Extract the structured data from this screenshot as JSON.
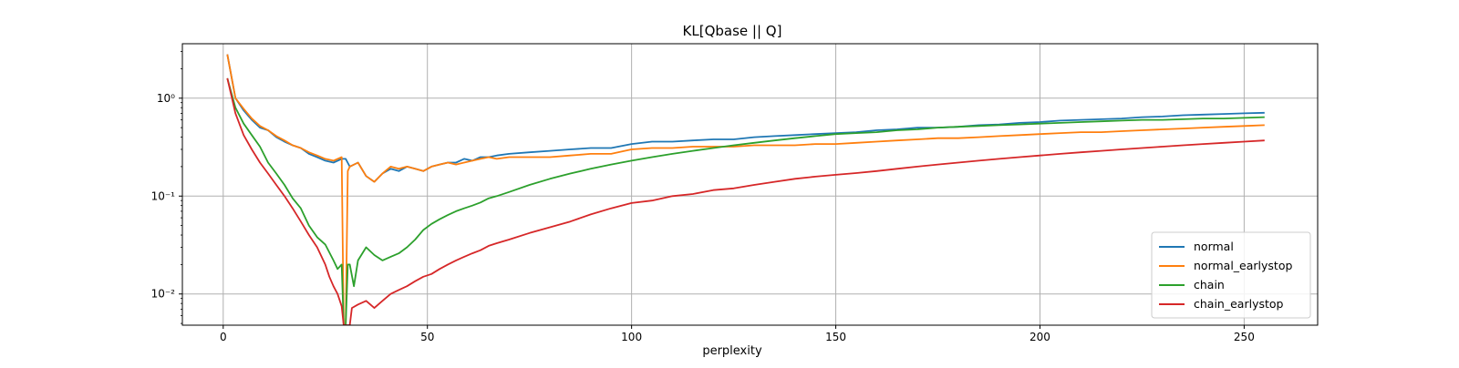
{
  "chart_data": {
    "type": "line",
    "title": "KL[Qbase || Q]",
    "xlabel": "perplexity",
    "ylabel": "",
    "xlim": [
      -10,
      268
    ],
    "ylim": [
      0.0048,
      3.6
    ],
    "yscale": "log",
    "grid": true,
    "legend_position": "lower right",
    "x_ticks": [
      0,
      50,
      100,
      150,
      200,
      250
    ],
    "x_tick_labels": [
      "0",
      "50",
      "100",
      "150",
      "200",
      "250"
    ],
    "y_ticks": [
      0.01,
      0.1,
      1
    ],
    "y_tick_labels": [
      "10⁻²",
      "10⁻¹",
      "10⁰"
    ],
    "series": [
      {
        "name": "normal",
        "color": "#1f77b4",
        "points": [
          [
            1,
            2.8
          ],
          [
            3,
            1.0
          ],
          [
            5,
            0.75
          ],
          [
            7,
            0.6
          ],
          [
            9,
            0.5
          ],
          [
            11,
            0.47
          ],
          [
            13,
            0.4
          ],
          [
            15,
            0.36
          ],
          [
            17,
            0.33
          ],
          [
            19,
            0.31
          ],
          [
            21,
            0.27
          ],
          [
            23,
            0.25
          ],
          [
            25,
            0.23
          ],
          [
            27,
            0.22
          ],
          [
            29,
            0.24
          ],
          [
            30,
            0.24
          ],
          [
            31,
            0.2
          ],
          [
            33,
            0.22
          ],
          [
            35,
            0.16
          ],
          [
            37,
            0.14
          ],
          [
            39,
            0.17
          ],
          [
            41,
            0.19
          ],
          [
            43,
            0.18
          ],
          [
            45,
            0.2
          ],
          [
            47,
            0.19
          ],
          [
            49,
            0.18
          ],
          [
            51,
            0.2
          ],
          [
            53,
            0.21
          ],
          [
            55,
            0.22
          ],
          [
            57,
            0.22
          ],
          [
            59,
            0.24
          ],
          [
            61,
            0.23
          ],
          [
            63,
            0.25
          ],
          [
            65,
            0.25
          ],
          [
            67,
            0.26
          ],
          [
            70,
            0.27
          ],
          [
            75,
            0.28
          ],
          [
            80,
            0.29
          ],
          [
            85,
            0.3
          ],
          [
            90,
            0.31
          ],
          [
            95,
            0.31
          ],
          [
            100,
            0.34
          ],
          [
            105,
            0.36
          ],
          [
            110,
            0.36
          ],
          [
            115,
            0.37
          ],
          [
            120,
            0.38
          ],
          [
            125,
            0.38
          ],
          [
            130,
            0.4
          ],
          [
            135,
            0.41
          ],
          [
            140,
            0.42
          ],
          [
            145,
            0.43
          ],
          [
            150,
            0.44
          ],
          [
            155,
            0.45
          ],
          [
            160,
            0.47
          ],
          [
            165,
            0.48
          ],
          [
            170,
            0.5
          ],
          [
            175,
            0.5
          ],
          [
            180,
            0.51
          ],
          [
            185,
            0.53
          ],
          [
            190,
            0.54
          ],
          [
            195,
            0.56
          ],
          [
            200,
            0.57
          ],
          [
            205,
            0.59
          ],
          [
            210,
            0.6
          ],
          [
            215,
            0.61
          ],
          [
            220,
            0.62
          ],
          [
            225,
            0.64
          ],
          [
            230,
            0.65
          ],
          [
            235,
            0.67
          ],
          [
            240,
            0.68
          ],
          [
            245,
            0.69
          ],
          [
            250,
            0.7
          ],
          [
            255,
            0.71
          ]
        ]
      },
      {
        "name": "normal_earlystop",
        "color": "#ff7f0e",
        "points": [
          [
            1,
            2.8
          ],
          [
            3,
            1.0
          ],
          [
            5,
            0.78
          ],
          [
            7,
            0.62
          ],
          [
            9,
            0.52
          ],
          [
            11,
            0.47
          ],
          [
            13,
            0.41
          ],
          [
            15,
            0.37
          ],
          [
            17,
            0.33
          ],
          [
            19,
            0.31
          ],
          [
            21,
            0.28
          ],
          [
            23,
            0.26
          ],
          [
            25,
            0.24
          ],
          [
            27,
            0.23
          ],
          [
            29,
            0.25
          ],
          [
            29.5,
            0.0048
          ],
          [
            30,
            0.0048
          ],
          [
            30.5,
            0.18
          ],
          [
            31,
            0.2
          ],
          [
            33,
            0.22
          ],
          [
            35,
            0.16
          ],
          [
            37,
            0.14
          ],
          [
            39,
            0.17
          ],
          [
            41,
            0.2
          ],
          [
            43,
            0.19
          ],
          [
            45,
            0.2
          ],
          [
            47,
            0.19
          ],
          [
            49,
            0.18
          ],
          [
            51,
            0.2
          ],
          [
            53,
            0.21
          ],
          [
            55,
            0.22
          ],
          [
            57,
            0.21
          ],
          [
            59,
            0.22
          ],
          [
            61,
            0.23
          ],
          [
            63,
            0.24
          ],
          [
            65,
            0.25
          ],
          [
            67,
            0.24
          ],
          [
            70,
            0.25
          ],
          [
            75,
            0.25
          ],
          [
            80,
            0.25
          ],
          [
            85,
            0.26
          ],
          [
            90,
            0.27
          ],
          [
            95,
            0.27
          ],
          [
            100,
            0.3
          ],
          [
            105,
            0.31
          ],
          [
            110,
            0.31
          ],
          [
            115,
            0.32
          ],
          [
            120,
            0.32
          ],
          [
            125,
            0.32
          ],
          [
            130,
            0.33
          ],
          [
            135,
            0.33
          ],
          [
            140,
            0.33
          ],
          [
            145,
            0.34
          ],
          [
            150,
            0.34
          ],
          [
            155,
            0.35
          ],
          [
            160,
            0.36
          ],
          [
            165,
            0.37
          ],
          [
            170,
            0.38
          ],
          [
            175,
            0.39
          ],
          [
            180,
            0.39
          ],
          [
            185,
            0.4
          ],
          [
            190,
            0.41
          ],
          [
            195,
            0.42
          ],
          [
            200,
            0.43
          ],
          [
            205,
            0.44
          ],
          [
            210,
            0.45
          ],
          [
            215,
            0.45
          ],
          [
            220,
            0.46
          ],
          [
            225,
            0.47
          ],
          [
            230,
            0.48
          ],
          [
            235,
            0.49
          ],
          [
            240,
            0.5
          ],
          [
            245,
            0.51
          ],
          [
            250,
            0.52
          ],
          [
            255,
            0.53
          ]
        ]
      },
      {
        "name": "chain",
        "color": "#2ca02c",
        "points": [
          [
            1,
            1.6
          ],
          [
            3,
            0.8
          ],
          [
            5,
            0.55
          ],
          [
            7,
            0.42
          ],
          [
            9,
            0.32
          ],
          [
            11,
            0.22
          ],
          [
            13,
            0.17
          ],
          [
            15,
            0.13
          ],
          [
            17,
            0.095
          ],
          [
            19,
            0.075
          ],
          [
            21,
            0.05
          ],
          [
            23,
            0.038
          ],
          [
            25,
            0.032
          ],
          [
            27,
            0.022
          ],
          [
            28,
            0.018
          ],
          [
            29,
            0.02
          ],
          [
            29.5,
            0.0048
          ],
          [
            30,
            0.0048
          ],
          [
            30.5,
            0.02
          ],
          [
            31,
            0.02
          ],
          [
            32,
            0.012
          ],
          [
            33,
            0.022
          ],
          [
            35,
            0.03
          ],
          [
            37,
            0.025
          ],
          [
            39,
            0.022
          ],
          [
            41,
            0.024
          ],
          [
            43,
            0.026
          ],
          [
            45,
            0.03
          ],
          [
            47,
            0.036
          ],
          [
            49,
            0.045
          ],
          [
            51,
            0.052
          ],
          [
            53,
            0.058
          ],
          [
            55,
            0.064
          ],
          [
            57,
            0.07
          ],
          [
            59,
            0.075
          ],
          [
            61,
            0.08
          ],
          [
            63,
            0.086
          ],
          [
            65,
            0.095
          ],
          [
            67,
            0.1
          ],
          [
            70,
            0.11
          ],
          [
            75,
            0.13
          ],
          [
            80,
            0.15
          ],
          [
            85,
            0.17
          ],
          [
            90,
            0.19
          ],
          [
            95,
            0.21
          ],
          [
            100,
            0.23
          ],
          [
            105,
            0.25
          ],
          [
            110,
            0.27
          ],
          [
            115,
            0.29
          ],
          [
            120,
            0.31
          ],
          [
            125,
            0.33
          ],
          [
            130,
            0.35
          ],
          [
            135,
            0.37
          ],
          [
            140,
            0.39
          ],
          [
            145,
            0.41
          ],
          [
            150,
            0.43
          ],
          [
            155,
            0.44
          ],
          [
            160,
            0.45
          ],
          [
            165,
            0.47
          ],
          [
            170,
            0.48
          ],
          [
            175,
            0.5
          ],
          [
            180,
            0.51
          ],
          [
            185,
            0.52
          ],
          [
            190,
            0.53
          ],
          [
            195,
            0.54
          ],
          [
            200,
            0.55
          ],
          [
            205,
            0.56
          ],
          [
            210,
            0.57
          ],
          [
            215,
            0.58
          ],
          [
            220,
            0.59
          ],
          [
            225,
            0.6
          ],
          [
            230,
            0.6
          ],
          [
            235,
            0.61
          ],
          [
            240,
            0.62
          ],
          [
            245,
            0.62
          ],
          [
            250,
            0.63
          ],
          [
            255,
            0.64
          ]
        ]
      },
      {
        "name": "chain_earlystop",
        "color": "#d62728",
        "points": [
          [
            1,
            1.6
          ],
          [
            3,
            0.7
          ],
          [
            5,
            0.42
          ],
          [
            7,
            0.3
          ],
          [
            9,
            0.22
          ],
          [
            11,
            0.17
          ],
          [
            13,
            0.13
          ],
          [
            15,
            0.1
          ],
          [
            17,
            0.075
          ],
          [
            19,
            0.055
          ],
          [
            21,
            0.04
          ],
          [
            23,
            0.03
          ],
          [
            25,
            0.02
          ],
          [
            26,
            0.015
          ],
          [
            27,
            0.012
          ],
          [
            28,
            0.01
          ],
          [
            29,
            0.0075
          ],
          [
            29.5,
            0.0048
          ],
          [
            30,
            0.0048
          ],
          [
            31,
            0.0048
          ],
          [
            31.5,
            0.0072
          ],
          [
            33,
            0.0078
          ],
          [
            35,
            0.0085
          ],
          [
            37,
            0.0072
          ],
          [
            39,
            0.0085
          ],
          [
            41,
            0.01
          ],
          [
            43,
            0.011
          ],
          [
            45,
            0.012
          ],
          [
            47,
            0.0135
          ],
          [
            49,
            0.015
          ],
          [
            51,
            0.016
          ],
          [
            53,
            0.018
          ],
          [
            55,
            0.02
          ],
          [
            57,
            0.022
          ],
          [
            59,
            0.024
          ],
          [
            61,
            0.026
          ],
          [
            63,
            0.028
          ],
          [
            65,
            0.031
          ],
          [
            67,
            0.033
          ],
          [
            70,
            0.036
          ],
          [
            75,
            0.042
          ],
          [
            80,
            0.048
          ],
          [
            85,
            0.055
          ],
          [
            90,
            0.065
          ],
          [
            95,
            0.075
          ],
          [
            100,
            0.085
          ],
          [
            105,
            0.09
          ],
          [
            110,
            0.1
          ],
          [
            115,
            0.105
          ],
          [
            120,
            0.115
          ],
          [
            125,
            0.12
          ],
          [
            130,
            0.13
          ],
          [
            135,
            0.14
          ],
          [
            140,
            0.15
          ],
          [
            145,
            0.158
          ],
          [
            150,
            0.165
          ],
          [
            155,
            0.172
          ],
          [
            160,
            0.18
          ],
          [
            165,
            0.19
          ],
          [
            170,
            0.2
          ],
          [
            175,
            0.21
          ],
          [
            180,
            0.22
          ],
          [
            185,
            0.23
          ],
          [
            190,
            0.24
          ],
          [
            195,
            0.25
          ],
          [
            200,
            0.26
          ],
          [
            205,
            0.27
          ],
          [
            210,
            0.28
          ],
          [
            215,
            0.29
          ],
          [
            220,
            0.3
          ],
          [
            225,
            0.31
          ],
          [
            230,
            0.32
          ],
          [
            235,
            0.33
          ],
          [
            240,
            0.34
          ],
          [
            245,
            0.35
          ],
          [
            250,
            0.36
          ],
          [
            255,
            0.37
          ]
        ]
      }
    ]
  }
}
